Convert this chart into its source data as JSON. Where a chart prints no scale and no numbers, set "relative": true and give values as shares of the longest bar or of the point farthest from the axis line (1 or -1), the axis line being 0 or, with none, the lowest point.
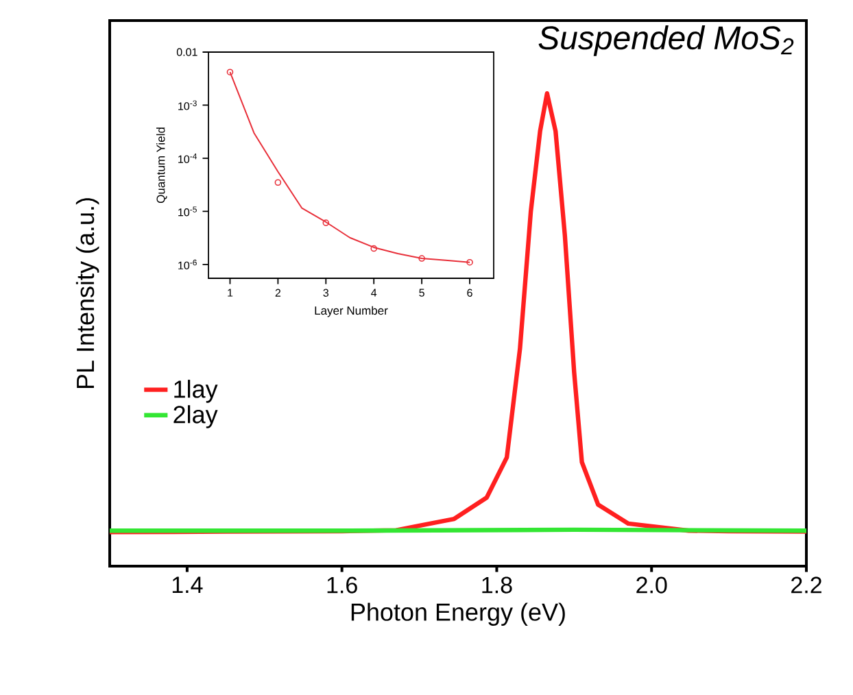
{
  "chart_data": [
    {
      "type": "line",
      "xlabel": "Photon Energy (eV)",
      "ylabel": "PL Intensity (a.u.)",
      "relative": true,
      "xlim": [
        1.3,
        2.2
      ],
      "xticks": [
        1.4,
        1.6,
        1.8,
        {
          "value": 2.0,
          "label": "2.0"
        },
        2.2
      ],
      "legend": "left",
      "marker": "none",
      "line_style": "solid",
      "annotations": [
        "Suspended MoS$_{2}$"
      ],
      "series": [
        {
          "name": "1lay",
          "color": "#ff2020",
          "x": [
            1.3,
            1.45,
            1.6,
            1.67,
            1.745,
            1.787,
            1.813,
            1.83,
            1.844,
            1.856,
            1.865,
            1.876,
            1.888,
            1.9,
            1.91,
            1.931,
            1.97,
            2.048,
            2.1,
            2.2
          ],
          "values": [
            0.072,
            0.073,
            0.074,
            0.076,
            0.1,
            0.145,
            0.23,
            0.46,
            0.75,
            0.92,
            1.0,
            0.92,
            0.7,
            0.41,
            0.22,
            0.13,
            0.09,
            0.075,
            0.074,
            0.073
          ]
        },
        {
          "name": "2lay",
          "color": "#33e633",
          "x": [
            1.3,
            1.6,
            1.9,
            2.2
          ],
          "values": [
            0.075,
            0.075,
            0.077,
            0.075
          ]
        }
      ]
    },
    {
      "type": "scatter",
      "xlabel": "Layer Number",
      "ylabel": "Quantum Yield",
      "log": "y",
      "xlim": [
        0.55,
        6.5
      ],
      "xticks": [
        1,
        2,
        3,
        4,
        5,
        6
      ],
      "ylim": [
        5.5e-07,
        0.01
      ],
      "yticks": [
        {
          "value": 1e-06,
          "label": "10$^{-6}$"
        },
        {
          "value": 1e-05,
          "label": "10$^{-5}$"
        },
        {
          "value": 0.0001,
          "label": "10$^{-4}$"
        },
        {
          "value": 0.001,
          "label": "10$^{-3}$"
        },
        0.01
      ],
      "series": [
        {
          "type": "scatter",
          "marker": "circle",
          "color": "#e8303a",
          "x": [
            1,
            2,
            3,
            4,
            5,
            6
          ],
          "values": [
            0.0042,
            3.5e-05,
            6.1e-06,
            2e-06,
            1.3e-06,
            1.1e-06
          ]
        },
        {
          "type": "line",
          "marker": "none",
          "color": "#e8303a",
          "x": [
            1,
            1.5,
            2,
            2.5,
            3,
            3.5,
            4,
            4.5,
            5,
            5.5,
            6
          ],
          "values": [
            0.0042,
            0.0003,
            5.6e-05,
            1.15e-05,
            6.3e-06,
            3.2e-06,
            2.1e-06,
            1.6e-06,
            1.3e-06,
            1.2e-06,
            1.1e-06
          ]
        }
      ]
    }
  ]
}
